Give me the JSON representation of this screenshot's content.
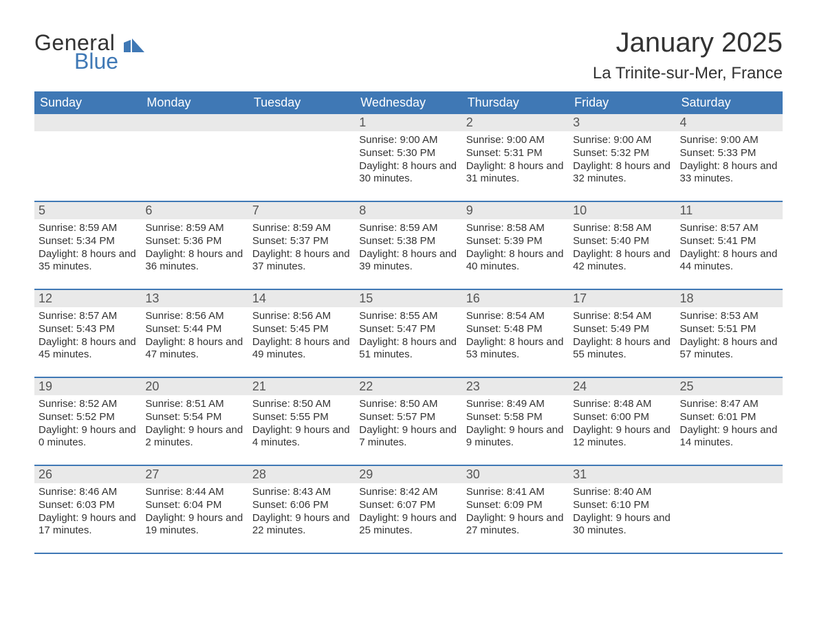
{
  "logo": {
    "text1": "General",
    "text2": "Blue",
    "icon_color": "#3f78b5"
  },
  "title": "January 2025",
  "location": "La Trinite-sur-Mer, France",
  "header_bg": "#3f78b5",
  "header_fg": "#ffffff",
  "daynum_bg": "#e9e9e9",
  "border_color": "#3f78b5",
  "text_color": "#333333",
  "days_of_week": [
    "Sunday",
    "Monday",
    "Tuesday",
    "Wednesday",
    "Thursday",
    "Friday",
    "Saturday"
  ],
  "weeks": [
    [
      null,
      null,
      null,
      {
        "n": "1",
        "sunrise": "9:00 AM",
        "sunset": "5:30 PM",
        "dl": "8 hours and 30 minutes."
      },
      {
        "n": "2",
        "sunrise": "9:00 AM",
        "sunset": "5:31 PM",
        "dl": "8 hours and 31 minutes."
      },
      {
        "n": "3",
        "sunrise": "9:00 AM",
        "sunset": "5:32 PM",
        "dl": "8 hours and 32 minutes."
      },
      {
        "n": "4",
        "sunrise": "9:00 AM",
        "sunset": "5:33 PM",
        "dl": "8 hours and 33 minutes."
      }
    ],
    [
      {
        "n": "5",
        "sunrise": "8:59 AM",
        "sunset": "5:34 PM",
        "dl": "8 hours and 35 minutes."
      },
      {
        "n": "6",
        "sunrise": "8:59 AM",
        "sunset": "5:36 PM",
        "dl": "8 hours and 36 minutes."
      },
      {
        "n": "7",
        "sunrise": "8:59 AM",
        "sunset": "5:37 PM",
        "dl": "8 hours and 37 minutes."
      },
      {
        "n": "8",
        "sunrise": "8:59 AM",
        "sunset": "5:38 PM",
        "dl": "8 hours and 39 minutes."
      },
      {
        "n": "9",
        "sunrise": "8:58 AM",
        "sunset": "5:39 PM",
        "dl": "8 hours and 40 minutes."
      },
      {
        "n": "10",
        "sunrise": "8:58 AM",
        "sunset": "5:40 PM",
        "dl": "8 hours and 42 minutes."
      },
      {
        "n": "11",
        "sunrise": "8:57 AM",
        "sunset": "5:41 PM",
        "dl": "8 hours and 44 minutes."
      }
    ],
    [
      {
        "n": "12",
        "sunrise": "8:57 AM",
        "sunset": "5:43 PM",
        "dl": "8 hours and 45 minutes."
      },
      {
        "n": "13",
        "sunrise": "8:56 AM",
        "sunset": "5:44 PM",
        "dl": "8 hours and 47 minutes."
      },
      {
        "n": "14",
        "sunrise": "8:56 AM",
        "sunset": "5:45 PM",
        "dl": "8 hours and 49 minutes."
      },
      {
        "n": "15",
        "sunrise": "8:55 AM",
        "sunset": "5:47 PM",
        "dl": "8 hours and 51 minutes."
      },
      {
        "n": "16",
        "sunrise": "8:54 AM",
        "sunset": "5:48 PM",
        "dl": "8 hours and 53 minutes."
      },
      {
        "n": "17",
        "sunrise": "8:54 AM",
        "sunset": "5:49 PM",
        "dl": "8 hours and 55 minutes."
      },
      {
        "n": "18",
        "sunrise": "8:53 AM",
        "sunset": "5:51 PM",
        "dl": "8 hours and 57 minutes."
      }
    ],
    [
      {
        "n": "19",
        "sunrise": "8:52 AM",
        "sunset": "5:52 PM",
        "dl": "9 hours and 0 minutes."
      },
      {
        "n": "20",
        "sunrise": "8:51 AM",
        "sunset": "5:54 PM",
        "dl": "9 hours and 2 minutes."
      },
      {
        "n": "21",
        "sunrise": "8:50 AM",
        "sunset": "5:55 PM",
        "dl": "9 hours and 4 minutes."
      },
      {
        "n": "22",
        "sunrise": "8:50 AM",
        "sunset": "5:57 PM",
        "dl": "9 hours and 7 minutes."
      },
      {
        "n": "23",
        "sunrise": "8:49 AM",
        "sunset": "5:58 PM",
        "dl": "9 hours and 9 minutes."
      },
      {
        "n": "24",
        "sunrise": "8:48 AM",
        "sunset": "6:00 PM",
        "dl": "9 hours and 12 minutes."
      },
      {
        "n": "25",
        "sunrise": "8:47 AM",
        "sunset": "6:01 PM",
        "dl": "9 hours and 14 minutes."
      }
    ],
    [
      {
        "n": "26",
        "sunrise": "8:46 AM",
        "sunset": "6:03 PM",
        "dl": "9 hours and 17 minutes."
      },
      {
        "n": "27",
        "sunrise": "8:44 AM",
        "sunset": "6:04 PM",
        "dl": "9 hours and 19 minutes."
      },
      {
        "n": "28",
        "sunrise": "8:43 AM",
        "sunset": "6:06 PM",
        "dl": "9 hours and 22 minutes."
      },
      {
        "n": "29",
        "sunrise": "8:42 AM",
        "sunset": "6:07 PM",
        "dl": "9 hours and 25 minutes."
      },
      {
        "n": "30",
        "sunrise": "8:41 AM",
        "sunset": "6:09 PM",
        "dl": "9 hours and 27 minutes."
      },
      {
        "n": "31",
        "sunrise": "8:40 AM",
        "sunset": "6:10 PM",
        "dl": "9 hours and 30 minutes."
      },
      null
    ]
  ],
  "labels": {
    "sunrise": "Sunrise: ",
    "sunset": "Sunset: ",
    "daylight": "Daylight: "
  }
}
